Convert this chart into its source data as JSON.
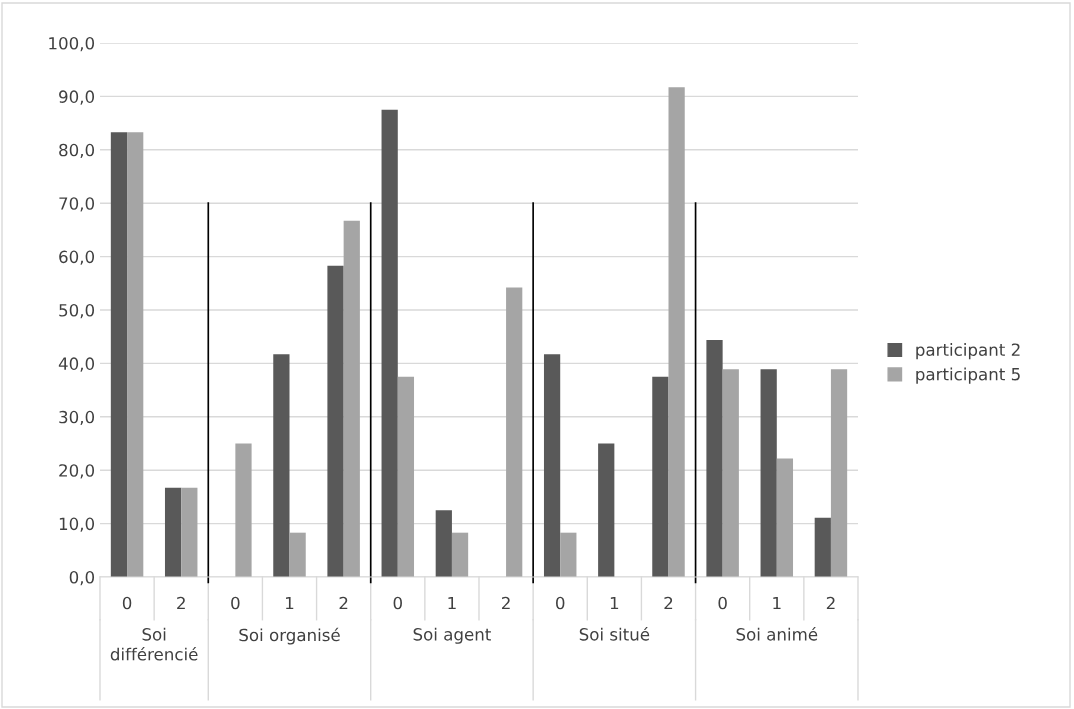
{
  "chart_data": {
    "type": "bar",
    "categories": [
      "0",
      "2",
      "0",
      "1",
      "2",
      "0",
      "1",
      "2",
      "0",
      "1",
      "2",
      "0",
      "1",
      "2"
    ],
    "series": [
      {
        "name": "participant 2",
        "color": "#595959",
        "values": [
          83.3,
          16.7,
          0,
          41.7,
          58.3,
          87.5,
          12.5,
          0,
          41.7,
          25.0,
          37.5,
          44.4,
          38.9,
          11.1
        ]
      },
      {
        "name": "participant 5",
        "color": "#a5a5a5",
        "values": [
          83.3,
          16.7,
          25.0,
          8.3,
          66.7,
          37.5,
          8.3,
          54.2,
          8.3,
          0,
          91.7,
          38.9,
          22.2,
          38.9
        ]
      }
    ],
    "annotations": [
      "Soi\ndifférencié",
      "Soi organisé",
      "Soi agent",
      "Soi situé",
      "Soi animé"
    ],
    "ylim": [
      0,
      100
    ],
    "yticks": [
      {
        "value": 0,
        "label": "0,0"
      },
      {
        "value": 10,
        "label": "10,0"
      },
      {
        "value": 20,
        "label": "20,0"
      },
      {
        "value": 30,
        "label": "30,0"
      },
      {
        "value": 40,
        "label": "40,0"
      },
      {
        "value": 50,
        "label": "50,0"
      },
      {
        "value": 60,
        "label": "60,0"
      },
      {
        "value": 70,
        "label": "70,0"
      },
      {
        "value": 80,
        "label": "80,0"
      },
      {
        "value": 90,
        "label": "90,0"
      },
      {
        "value": 100,
        "label": "100,0"
      }
    ],
    "grid": "y",
    "legend": "right"
  }
}
